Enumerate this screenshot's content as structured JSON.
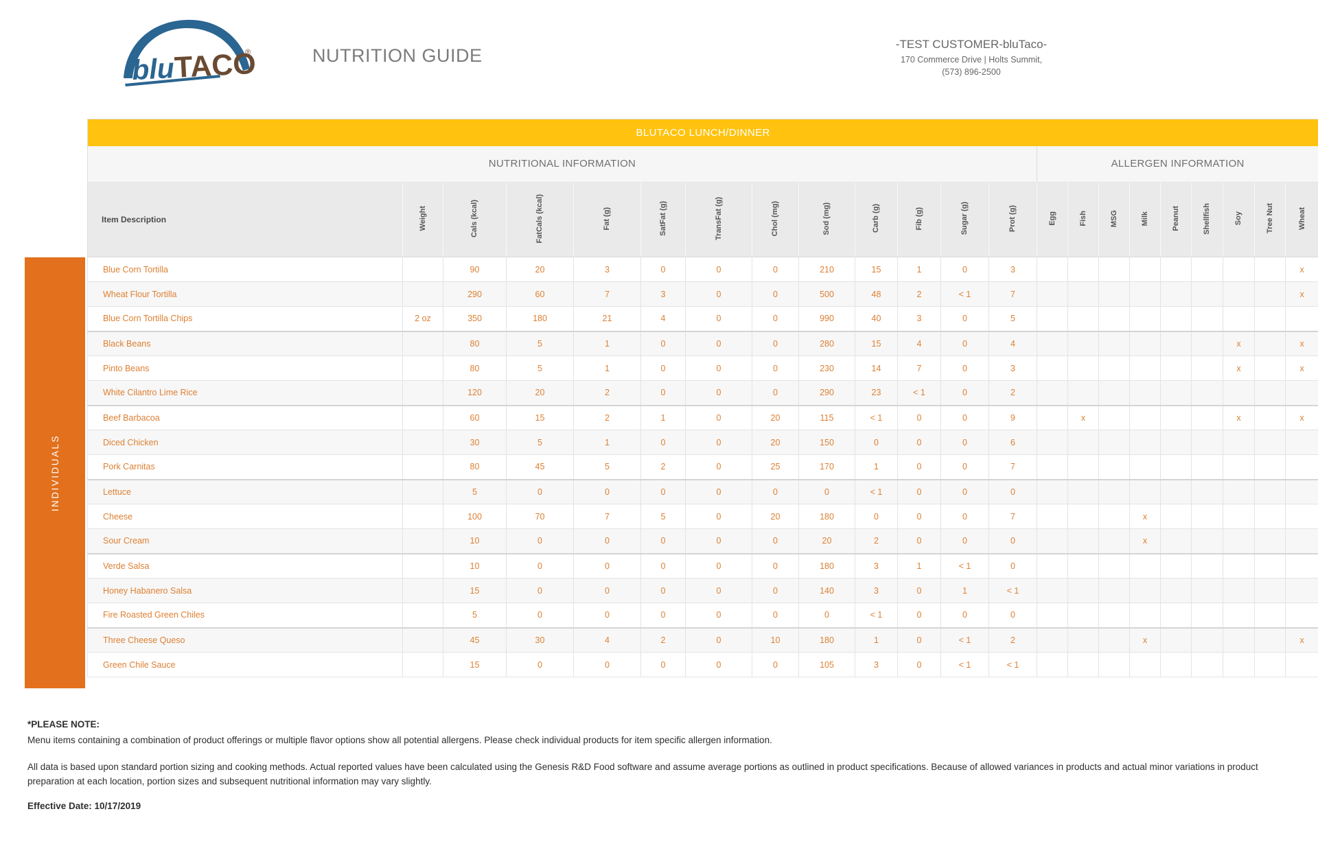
{
  "theme": {
    "banner_yellow": "#FFC20E",
    "sidebar_orange": "#E2701C",
    "data_orange": "#DD8033",
    "logo_blue": "#2B6591",
    "logo_brown": "#6A4A33"
  },
  "header": {
    "logo": {
      "part1": "blu",
      "part2": "TACO",
      "registered": "®"
    },
    "title": "NUTRITION GUIDE",
    "customer": {
      "name": "-TEST CUSTOMER-bluTaco-",
      "address_line": "170 Commerce Drive | Holts Summit,",
      "phone": "(573) 896-2500"
    }
  },
  "banner": {
    "label": "BLUTACO LUNCH/DINNER"
  },
  "sections": {
    "nutritional": "NUTRITIONAL INFORMATION",
    "allergen": "ALLERGEN INFORMATION"
  },
  "group_label": "INDIVIDUALS",
  "columns": {
    "item": "Item Description",
    "weight": "Weight",
    "nutrition": [
      "Cals (kcal)",
      "FatCals (kcal)",
      "Fat (g)",
      "SatFat (g)",
      "TransFat (g)",
      "Chol (mg)",
      "Sod (mg)",
      "Carb (g)",
      "Fib (g)",
      "Sugar (g)",
      "Prot (g)"
    ],
    "allergens": [
      "Egg",
      "Fish",
      "MSG",
      "Milk",
      "Peanut",
      "Shellfish",
      "Soy",
      "Tree Nut",
      "Wheat"
    ]
  },
  "rows": [
    {
      "item": "Blue Corn Tortilla",
      "weight": "",
      "nutrition": [
        "90",
        "20",
        "3",
        "0",
        "0",
        "0",
        "210",
        "15",
        "1",
        "0",
        "3"
      ],
      "allergens": [
        "",
        "",
        "",
        "",
        "",
        "",
        "",
        "",
        "x"
      ]
    },
    {
      "item": "Wheat Flour Tortilla",
      "weight": "",
      "nutrition": [
        "290",
        "60",
        "7",
        "3",
        "0",
        "0",
        "500",
        "48",
        "2",
        "< 1",
        "7"
      ],
      "allergens": [
        "",
        "",
        "",
        "",
        "",
        "",
        "",
        "",
        "x"
      ]
    },
    {
      "item": "Blue Corn Tortilla Chips",
      "weight": "2 oz",
      "nutrition": [
        "350",
        "180",
        "21",
        "4",
        "0",
        "0",
        "990",
        "40",
        "3",
        "0",
        "5"
      ],
      "allergens": [
        "",
        "",
        "",
        "",
        "",
        "",
        "",
        "",
        ""
      ]
    },
    {
      "item": "Black Beans",
      "weight": "",
      "nutrition": [
        "80",
        "5",
        "1",
        "0",
        "0",
        "0",
        "280",
        "15",
        "4",
        "0",
        "4"
      ],
      "allergens": [
        "",
        "",
        "",
        "",
        "",
        "",
        "x",
        "",
        "x"
      ]
    },
    {
      "item": "Pinto Beans",
      "weight": "",
      "nutrition": [
        "80",
        "5",
        "1",
        "0",
        "0",
        "0",
        "230",
        "14",
        "7",
        "0",
        "3"
      ],
      "allergens": [
        "",
        "",
        "",
        "",
        "",
        "",
        "x",
        "",
        "x"
      ]
    },
    {
      "item": "White Cilantro Lime Rice",
      "weight": "",
      "nutrition": [
        "120",
        "20",
        "2",
        "0",
        "0",
        "0",
        "290",
        "23",
        "< 1",
        "0",
        "2"
      ],
      "allergens": [
        "",
        "",
        "",
        "",
        "",
        "",
        "",
        "",
        ""
      ]
    },
    {
      "item": "Beef Barbacoa",
      "weight": "",
      "nutrition": [
        "60",
        "15",
        "2",
        "1",
        "0",
        "20",
        "115",
        "< 1",
        "0",
        "0",
        "9"
      ],
      "allergens": [
        "",
        "x",
        "",
        "",
        "",
        "",
        "x",
        "",
        "x"
      ]
    },
    {
      "item": "Diced Chicken",
      "weight": "",
      "nutrition": [
        "30",
        "5",
        "1",
        "0",
        "0",
        "20",
        "150",
        "0",
        "0",
        "0",
        "6"
      ],
      "allergens": [
        "",
        "",
        "",
        "",
        "",
        "",
        "",
        "",
        ""
      ]
    },
    {
      "item": "Pork Carnitas",
      "weight": "",
      "nutrition": [
        "80",
        "45",
        "5",
        "2",
        "0",
        "25",
        "170",
        "1",
        "0",
        "0",
        "7"
      ],
      "allergens": [
        "",
        "",
        "",
        "",
        "",
        "",
        "",
        "",
        ""
      ]
    },
    {
      "item": "Lettuce",
      "weight": "",
      "nutrition": [
        "5",
        "0",
        "0",
        "0",
        "0",
        "0",
        "0",
        "< 1",
        "0",
        "0",
        "0"
      ],
      "allergens": [
        "",
        "",
        "",
        "",
        "",
        "",
        "",
        "",
        ""
      ]
    },
    {
      "item": "Cheese",
      "weight": "",
      "nutrition": [
        "100",
        "70",
        "7",
        "5",
        "0",
        "20",
        "180",
        "0",
        "0",
        "0",
        "7"
      ],
      "allergens": [
        "",
        "",
        "",
        "x",
        "",
        "",
        "",
        "",
        ""
      ]
    },
    {
      "item": "Sour Cream",
      "weight": "",
      "nutrition": [
        "10",
        "0",
        "0",
        "0",
        "0",
        "0",
        "20",
        "2",
        "0",
        "0",
        "0"
      ],
      "allergens": [
        "",
        "",
        "",
        "x",
        "",
        "",
        "",
        "",
        ""
      ]
    },
    {
      "item": "Verde Salsa",
      "weight": "",
      "nutrition": [
        "10",
        "0",
        "0",
        "0",
        "0",
        "0",
        "180",
        "3",
        "1",
        "< 1",
        "0"
      ],
      "allergens": [
        "",
        "",
        "",
        "",
        "",
        "",
        "",
        "",
        ""
      ]
    },
    {
      "item": "Honey Habanero Salsa",
      "weight": "",
      "nutrition": [
        "15",
        "0",
        "0",
        "0",
        "0",
        "0",
        "140",
        "3",
        "0",
        "1",
        "< 1"
      ],
      "allergens": [
        "",
        "",
        "",
        "",
        "",
        "",
        "",
        "",
        ""
      ]
    },
    {
      "item": "Fire Roasted Green Chiles",
      "weight": "",
      "nutrition": [
        "5",
        "0",
        "0",
        "0",
        "0",
        "0",
        "0",
        "< 1",
        "0",
        "0",
        "0"
      ],
      "allergens": [
        "",
        "",
        "",
        "",
        "",
        "",
        "",
        "",
        ""
      ]
    },
    {
      "item": "Three Cheese Queso",
      "weight": "",
      "nutrition": [
        "45",
        "30",
        "4",
        "2",
        "0",
        "10",
        "180",
        "1",
        "0",
        "< 1",
        "2"
      ],
      "allergens": [
        "",
        "",
        "",
        "x",
        "",
        "",
        "",
        "",
        "x"
      ]
    },
    {
      "item": "Green Chile Sauce",
      "weight": "",
      "nutrition": [
        "15",
        "0",
        "0",
        "0",
        "0",
        "0",
        "105",
        "3",
        "0",
        "< 1",
        "< 1"
      ],
      "allergens": [
        "",
        "",
        "",
        "",
        "",
        "",
        "",
        "",
        ""
      ]
    }
  ],
  "footnotes": {
    "please_note_label": "*PLEASE NOTE:",
    "note1": "Menu items containing a combination of product offerings or multiple flavor options show all potential allergens. Please check individual products for item specific allergen information.",
    "note2": "All data is based upon standard portion sizing and cooking methods. Actual reported values have been calculated using the Genesis R&D Food software and assume average portions as outlined in product specifications. Because of allowed variances in products and actual minor variations in product preparation at each location, portion sizes and subsequent nutritional information may vary slightly.",
    "effective_date": "Effective Date: 10/17/2019"
  }
}
